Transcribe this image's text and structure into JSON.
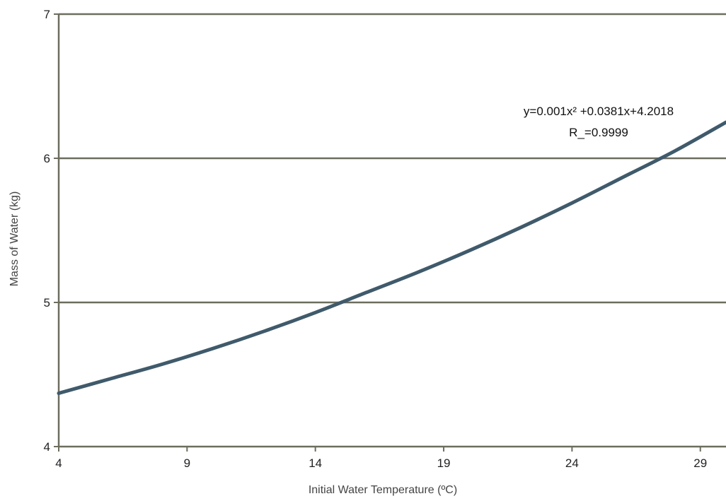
{
  "chart_data": {
    "type": "line",
    "title": "",
    "xlabel": "Initial Water Temperature (ºC)",
    "ylabel": "Mass of Water (kg)",
    "xlim": [
      4,
      30
    ],
    "ylim": [
      4,
      7
    ],
    "x_ticks": [
      4,
      9,
      14,
      19,
      24,
      29
    ],
    "y_ticks": [
      4,
      5,
      6,
      7
    ],
    "grid": "horizontal",
    "series": [
      {
        "x": [
          4,
          6,
          8,
          10,
          12,
          14,
          16,
          18,
          20,
          22,
          24,
          26,
          28,
          30
        ],
        "y": [
          4.37,
          4.47,
          4.57,
          4.68,
          4.8,
          4.93,
          5.07,
          5.21,
          5.36,
          5.52,
          5.69,
          5.87,
          6.05,
          6.25
        ],
        "color": "#3f5a6b"
      }
    ],
    "annotations": [
      "y=0.001x² +0.0381x+4.2018",
      "R_=0.9999"
    ]
  }
}
